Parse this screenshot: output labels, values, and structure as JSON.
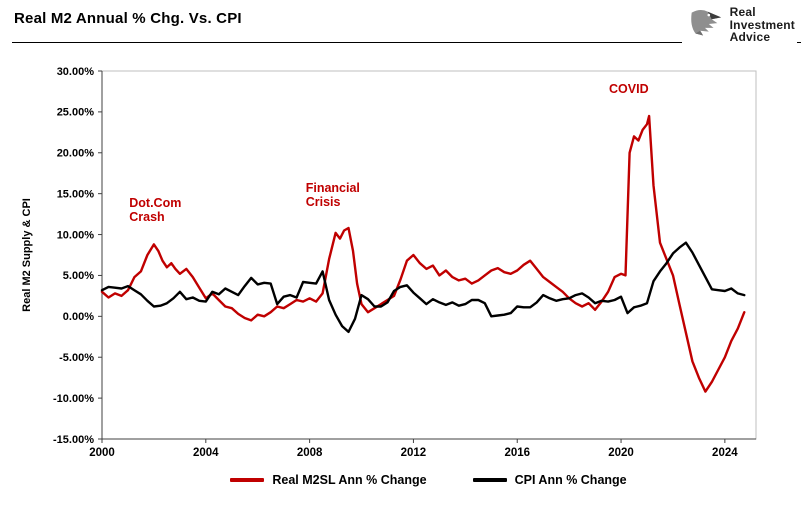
{
  "header": {
    "title": "Real M2 Annual % Chg. Vs. CPI"
  },
  "logo": {
    "lines": [
      "Real",
      "Investment",
      "Advice"
    ]
  },
  "chart_data": {
    "type": "line",
    "title": "Real M2 Annual % Chg. Vs. CPI",
    "xlabel": "",
    "ylabel": "Real M2 Supply & CPI",
    "xlim": [
      2000,
      2025.2
    ],
    "ylim": [
      -15,
      30
    ],
    "grid": false,
    "legend_position": "bottom",
    "yticks": [
      {
        "value": 30,
        "label": "30.00%"
      },
      {
        "value": 25,
        "label": "25.00%"
      },
      {
        "value": 20,
        "label": "20.00%"
      },
      {
        "value": 15,
        "label": "15.00%"
      },
      {
        "value": 10,
        "label": "10.00%"
      },
      {
        "value": 5,
        "label": "5.00%"
      },
      {
        "value": 0,
        "label": "0.00%"
      },
      {
        "value": -5,
        "label": "-5.00%"
      },
      {
        "value": -10,
        "label": "-10.00%"
      },
      {
        "value": -15,
        "label": "-15.00%"
      }
    ],
    "xticks": [
      {
        "value": 2000,
        "label": "2000"
      },
      {
        "value": 2004,
        "label": "2004"
      },
      {
        "value": 2008,
        "label": "2008"
      },
      {
        "value": 2012,
        "label": "2012"
      },
      {
        "value": 2016,
        "label": "2016"
      },
      {
        "value": 2020,
        "label": "2020"
      },
      {
        "value": 2024,
        "label": "2024"
      }
    ],
    "series": [
      {
        "name": "Real M2SL Ann % Change",
        "color": "#C00000",
        "points": [
          [
            2000.0,
            3.0
          ],
          [
            2000.25,
            2.3
          ],
          [
            2000.5,
            2.8
          ],
          [
            2000.75,
            2.5
          ],
          [
            2001.0,
            3.2
          ],
          [
            2001.25,
            4.8
          ],
          [
            2001.5,
            5.5
          ],
          [
            2001.75,
            7.5
          ],
          [
            2002.0,
            8.8
          ],
          [
            2002.17,
            8.0
          ],
          [
            2002.33,
            6.8
          ],
          [
            2002.5,
            6.0
          ],
          [
            2002.67,
            6.5
          ],
          [
            2002.83,
            5.8
          ],
          [
            2003.0,
            5.2
          ],
          [
            2003.25,
            5.8
          ],
          [
            2003.5,
            4.8
          ],
          [
            2003.75,
            3.5
          ],
          [
            2004.0,
            2.2
          ],
          [
            2004.25,
            2.8
          ],
          [
            2004.5,
            2.0
          ],
          [
            2004.75,
            1.2
          ],
          [
            2005.0,
            1.0
          ],
          [
            2005.25,
            0.3
          ],
          [
            2005.5,
            -0.2
          ],
          [
            2005.75,
            -0.5
          ],
          [
            2006.0,
            0.2
          ],
          [
            2006.25,
            0.0
          ],
          [
            2006.5,
            0.5
          ],
          [
            2006.75,
            1.2
          ],
          [
            2007.0,
            1.0
          ],
          [
            2007.25,
            1.5
          ],
          [
            2007.5,
            2.0
          ],
          [
            2007.75,
            1.8
          ],
          [
            2008.0,
            2.2
          ],
          [
            2008.25,
            1.8
          ],
          [
            2008.5,
            2.8
          ],
          [
            2008.75,
            7.0
          ],
          [
            2009.0,
            10.2
          ],
          [
            2009.17,
            9.5
          ],
          [
            2009.33,
            10.5
          ],
          [
            2009.5,
            10.8
          ],
          [
            2009.67,
            8.0
          ],
          [
            2009.83,
            4.0
          ],
          [
            2010.0,
            1.5
          ],
          [
            2010.25,
            0.5
          ],
          [
            2010.5,
            1.0
          ],
          [
            2010.75,
            1.5
          ],
          [
            2011.0,
            2.0
          ],
          [
            2011.25,
            2.5
          ],
          [
            2011.5,
            4.5
          ],
          [
            2011.75,
            6.8
          ],
          [
            2012.0,
            7.5
          ],
          [
            2012.25,
            6.5
          ],
          [
            2012.5,
            5.8
          ],
          [
            2012.75,
            6.2
          ],
          [
            2013.0,
            5.0
          ],
          [
            2013.25,
            5.6
          ],
          [
            2013.5,
            4.8
          ],
          [
            2013.75,
            4.4
          ],
          [
            2014.0,
            4.6
          ],
          [
            2014.25,
            4.0
          ],
          [
            2014.5,
            4.4
          ],
          [
            2014.75,
            5.0
          ],
          [
            2015.0,
            5.6
          ],
          [
            2015.25,
            5.9
          ],
          [
            2015.5,
            5.4
          ],
          [
            2015.75,
            5.2
          ],
          [
            2016.0,
            5.6
          ],
          [
            2016.25,
            6.3
          ],
          [
            2016.5,
            6.8
          ],
          [
            2016.75,
            5.8
          ],
          [
            2017.0,
            4.8
          ],
          [
            2017.25,
            4.2
          ],
          [
            2017.5,
            3.6
          ],
          [
            2017.75,
            3.0
          ],
          [
            2018.0,
            2.2
          ],
          [
            2018.25,
            1.6
          ],
          [
            2018.5,
            1.2
          ],
          [
            2018.75,
            1.6
          ],
          [
            2019.0,
            0.8
          ],
          [
            2019.25,
            1.8
          ],
          [
            2019.5,
            3.0
          ],
          [
            2019.75,
            4.8
          ],
          [
            2020.0,
            5.2
          ],
          [
            2020.17,
            5.0
          ],
          [
            2020.33,
            20.0
          ],
          [
            2020.5,
            22.0
          ],
          [
            2020.67,
            21.5
          ],
          [
            2020.83,
            22.8
          ],
          [
            2021.0,
            23.5
          ],
          [
            2021.08,
            24.5
          ],
          [
            2021.25,
            16.0
          ],
          [
            2021.5,
            9.0
          ],
          [
            2021.75,
            7.0
          ],
          [
            2022.0,
            5.0
          ],
          [
            2022.25,
            1.5
          ],
          [
            2022.5,
            -2.0
          ],
          [
            2022.75,
            -5.5
          ],
          [
            2023.0,
            -7.5
          ],
          [
            2023.25,
            -9.2
          ],
          [
            2023.5,
            -8.0
          ],
          [
            2023.75,
            -6.5
          ],
          [
            2024.0,
            -5.0
          ],
          [
            2024.25,
            -3.0
          ],
          [
            2024.5,
            -1.5
          ],
          [
            2024.75,
            0.5
          ]
        ]
      },
      {
        "name": "CPI Ann % Change",
        "color": "#000000",
        "points": [
          [
            2000.0,
            3.2
          ],
          [
            2000.25,
            3.6
          ],
          [
            2000.5,
            3.5
          ],
          [
            2000.75,
            3.4
          ],
          [
            2001.0,
            3.7
          ],
          [
            2001.25,
            3.2
          ],
          [
            2001.5,
            2.7
          ],
          [
            2001.75,
            1.9
          ],
          [
            2002.0,
            1.2
          ],
          [
            2002.25,
            1.3
          ],
          [
            2002.5,
            1.6
          ],
          [
            2002.75,
            2.2
          ],
          [
            2003.0,
            3.0
          ],
          [
            2003.25,
            2.1
          ],
          [
            2003.5,
            2.3
          ],
          [
            2003.75,
            1.9
          ],
          [
            2004.0,
            1.8
          ],
          [
            2004.25,
            3.0
          ],
          [
            2004.5,
            2.7
          ],
          [
            2004.75,
            3.4
          ],
          [
            2005.0,
            3.0
          ],
          [
            2005.25,
            2.6
          ],
          [
            2005.5,
            3.7
          ],
          [
            2005.75,
            4.7
          ],
          [
            2006.0,
            3.9
          ],
          [
            2006.25,
            4.1
          ],
          [
            2006.5,
            4.0
          ],
          [
            2006.75,
            1.5
          ],
          [
            2007.0,
            2.4
          ],
          [
            2007.25,
            2.6
          ],
          [
            2007.5,
            2.3
          ],
          [
            2007.75,
            4.2
          ],
          [
            2008.0,
            4.1
          ],
          [
            2008.25,
            4.0
          ],
          [
            2008.5,
            5.5
          ],
          [
            2008.75,
            2.0
          ],
          [
            2009.0,
            0.2
          ],
          [
            2009.25,
            -1.2
          ],
          [
            2009.5,
            -1.9
          ],
          [
            2009.75,
            -0.3
          ],
          [
            2010.0,
            2.6
          ],
          [
            2010.25,
            2.1
          ],
          [
            2010.5,
            1.2
          ],
          [
            2010.75,
            1.2
          ],
          [
            2011.0,
            1.7
          ],
          [
            2011.25,
            3.1
          ],
          [
            2011.5,
            3.6
          ],
          [
            2011.75,
            3.8
          ],
          [
            2012.0,
            2.9
          ],
          [
            2012.25,
            2.2
          ],
          [
            2012.5,
            1.5
          ],
          [
            2012.75,
            2.1
          ],
          [
            2013.0,
            1.7
          ],
          [
            2013.25,
            1.4
          ],
          [
            2013.5,
            1.7
          ],
          [
            2013.75,
            1.3
          ],
          [
            2014.0,
            1.5
          ],
          [
            2014.25,
            2.0
          ],
          [
            2014.5,
            2.0
          ],
          [
            2014.75,
            1.6
          ],
          [
            2015.0,
            0.0
          ],
          [
            2015.25,
            0.1
          ],
          [
            2015.5,
            0.2
          ],
          [
            2015.75,
            0.4
          ],
          [
            2016.0,
            1.2
          ],
          [
            2016.25,
            1.1
          ],
          [
            2016.5,
            1.1
          ],
          [
            2016.75,
            1.7
          ],
          [
            2017.0,
            2.6
          ],
          [
            2017.25,
            2.2
          ],
          [
            2017.5,
            1.9
          ],
          [
            2017.75,
            2.1
          ],
          [
            2018.0,
            2.2
          ],
          [
            2018.25,
            2.6
          ],
          [
            2018.5,
            2.8
          ],
          [
            2018.75,
            2.3
          ],
          [
            2019.0,
            1.6
          ],
          [
            2019.25,
            1.9
          ],
          [
            2019.5,
            1.8
          ],
          [
            2019.75,
            2.0
          ],
          [
            2020.0,
            2.4
          ],
          [
            2020.25,
            0.4
          ],
          [
            2020.5,
            1.1
          ],
          [
            2020.75,
            1.3
          ],
          [
            2021.0,
            1.6
          ],
          [
            2021.25,
            4.3
          ],
          [
            2021.5,
            5.5
          ],
          [
            2021.75,
            6.5
          ],
          [
            2022.0,
            7.7
          ],
          [
            2022.25,
            8.4
          ],
          [
            2022.5,
            9.0
          ],
          [
            2022.75,
            7.8
          ],
          [
            2023.0,
            6.3
          ],
          [
            2023.25,
            4.8
          ],
          [
            2023.5,
            3.3
          ],
          [
            2023.75,
            3.2
          ],
          [
            2024.0,
            3.1
          ],
          [
            2024.25,
            3.4
          ],
          [
            2024.5,
            2.8
          ],
          [
            2024.75,
            2.6
          ]
        ]
      }
    ],
    "annotations": [
      {
        "text": [
          "Dot.Com",
          "Crash"
        ],
        "x": 2001.05,
        "y": 13.4,
        "anchor": "start",
        "color": "#C00000"
      },
      {
        "text": [
          "Financial",
          "Crisis"
        ],
        "x": 2007.85,
        "y": 15.2,
        "anchor": "start",
        "color": "#C00000"
      },
      {
        "text": [
          "COVID"
        ],
        "x": 2020.3,
        "y": 27.3,
        "anchor": "middle",
        "color": "#C00000"
      }
    ]
  }
}
